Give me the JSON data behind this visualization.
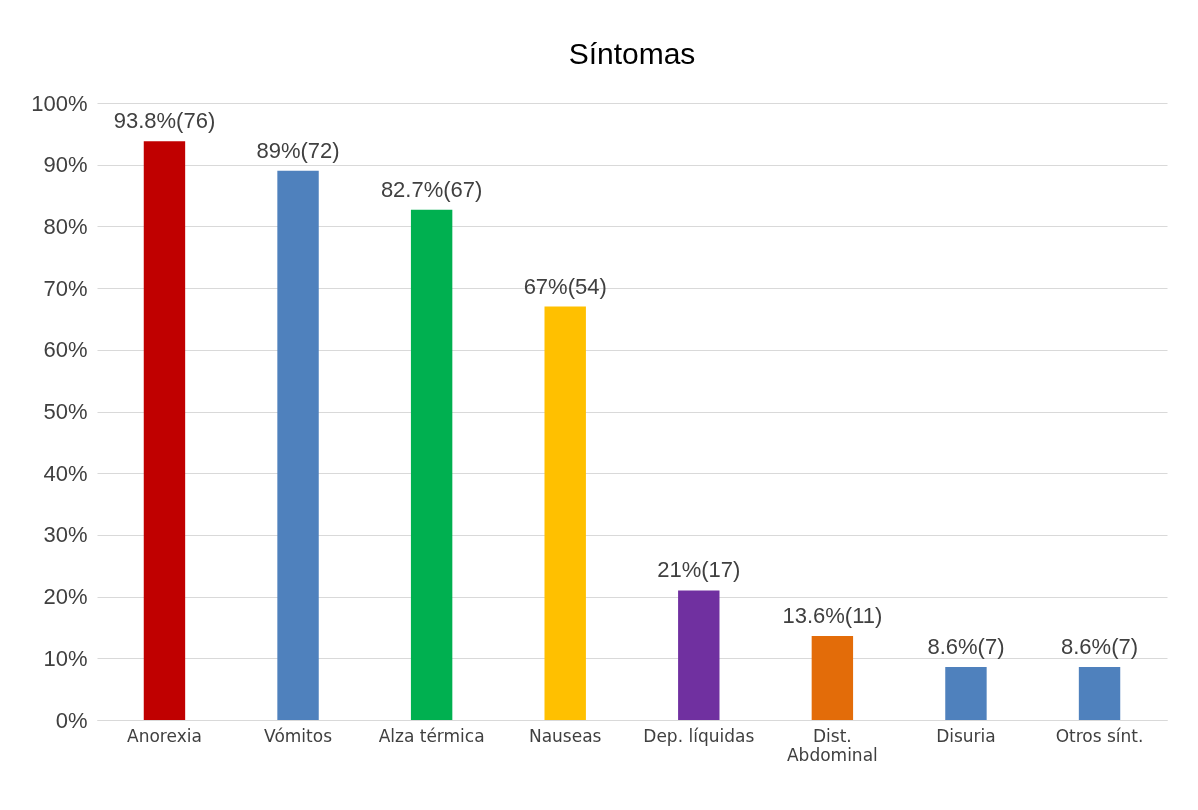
{
  "chart_data": {
    "type": "bar",
    "title": "Síntomas",
    "categories": [
      "Anorexia",
      "Vómitos",
      "Alza térmica",
      "Nauseas",
      "Dep. líquidas",
      "Dist. Abdominal",
      "Disuria",
      "Otros sínt."
    ],
    "values": [
      93.8,
      89,
      82.7,
      67,
      21,
      13.6,
      8.6,
      8.6
    ],
    "colors": [
      "#c00000",
      "#4f81bd",
      "#00b050",
      "#ffc000",
      "#7030a0",
      "#e36c09",
      "#4f81bd",
      "#4f81bd"
    ],
    "value_labels": [
      "93.8%(76)",
      "89%(72)",
      "82.7%(67)",
      "67%(54)",
      "21%(17)",
      "13.6%(11)",
      "8.6%(7)",
      "8.6%(7)"
    ],
    "ylim": [
      0,
      100
    ],
    "yticks": [
      {
        "value": 0,
        "label": "0%"
      },
      {
        "value": 10,
        "label": "10%"
      },
      {
        "value": 20,
        "label": "20%"
      },
      {
        "value": 30,
        "label": "30%"
      },
      {
        "value": 40,
        "label": "40%"
      },
      {
        "value": 50,
        "label": "50%"
      },
      {
        "value": 60,
        "label": "60%"
      },
      {
        "value": 70,
        "label": "70%"
      },
      {
        "value": 80,
        "label": "80%"
      },
      {
        "value": 90,
        "label": "90%"
      },
      {
        "value": 100,
        "label": "100%"
      }
    ],
    "grid": "y"
  }
}
